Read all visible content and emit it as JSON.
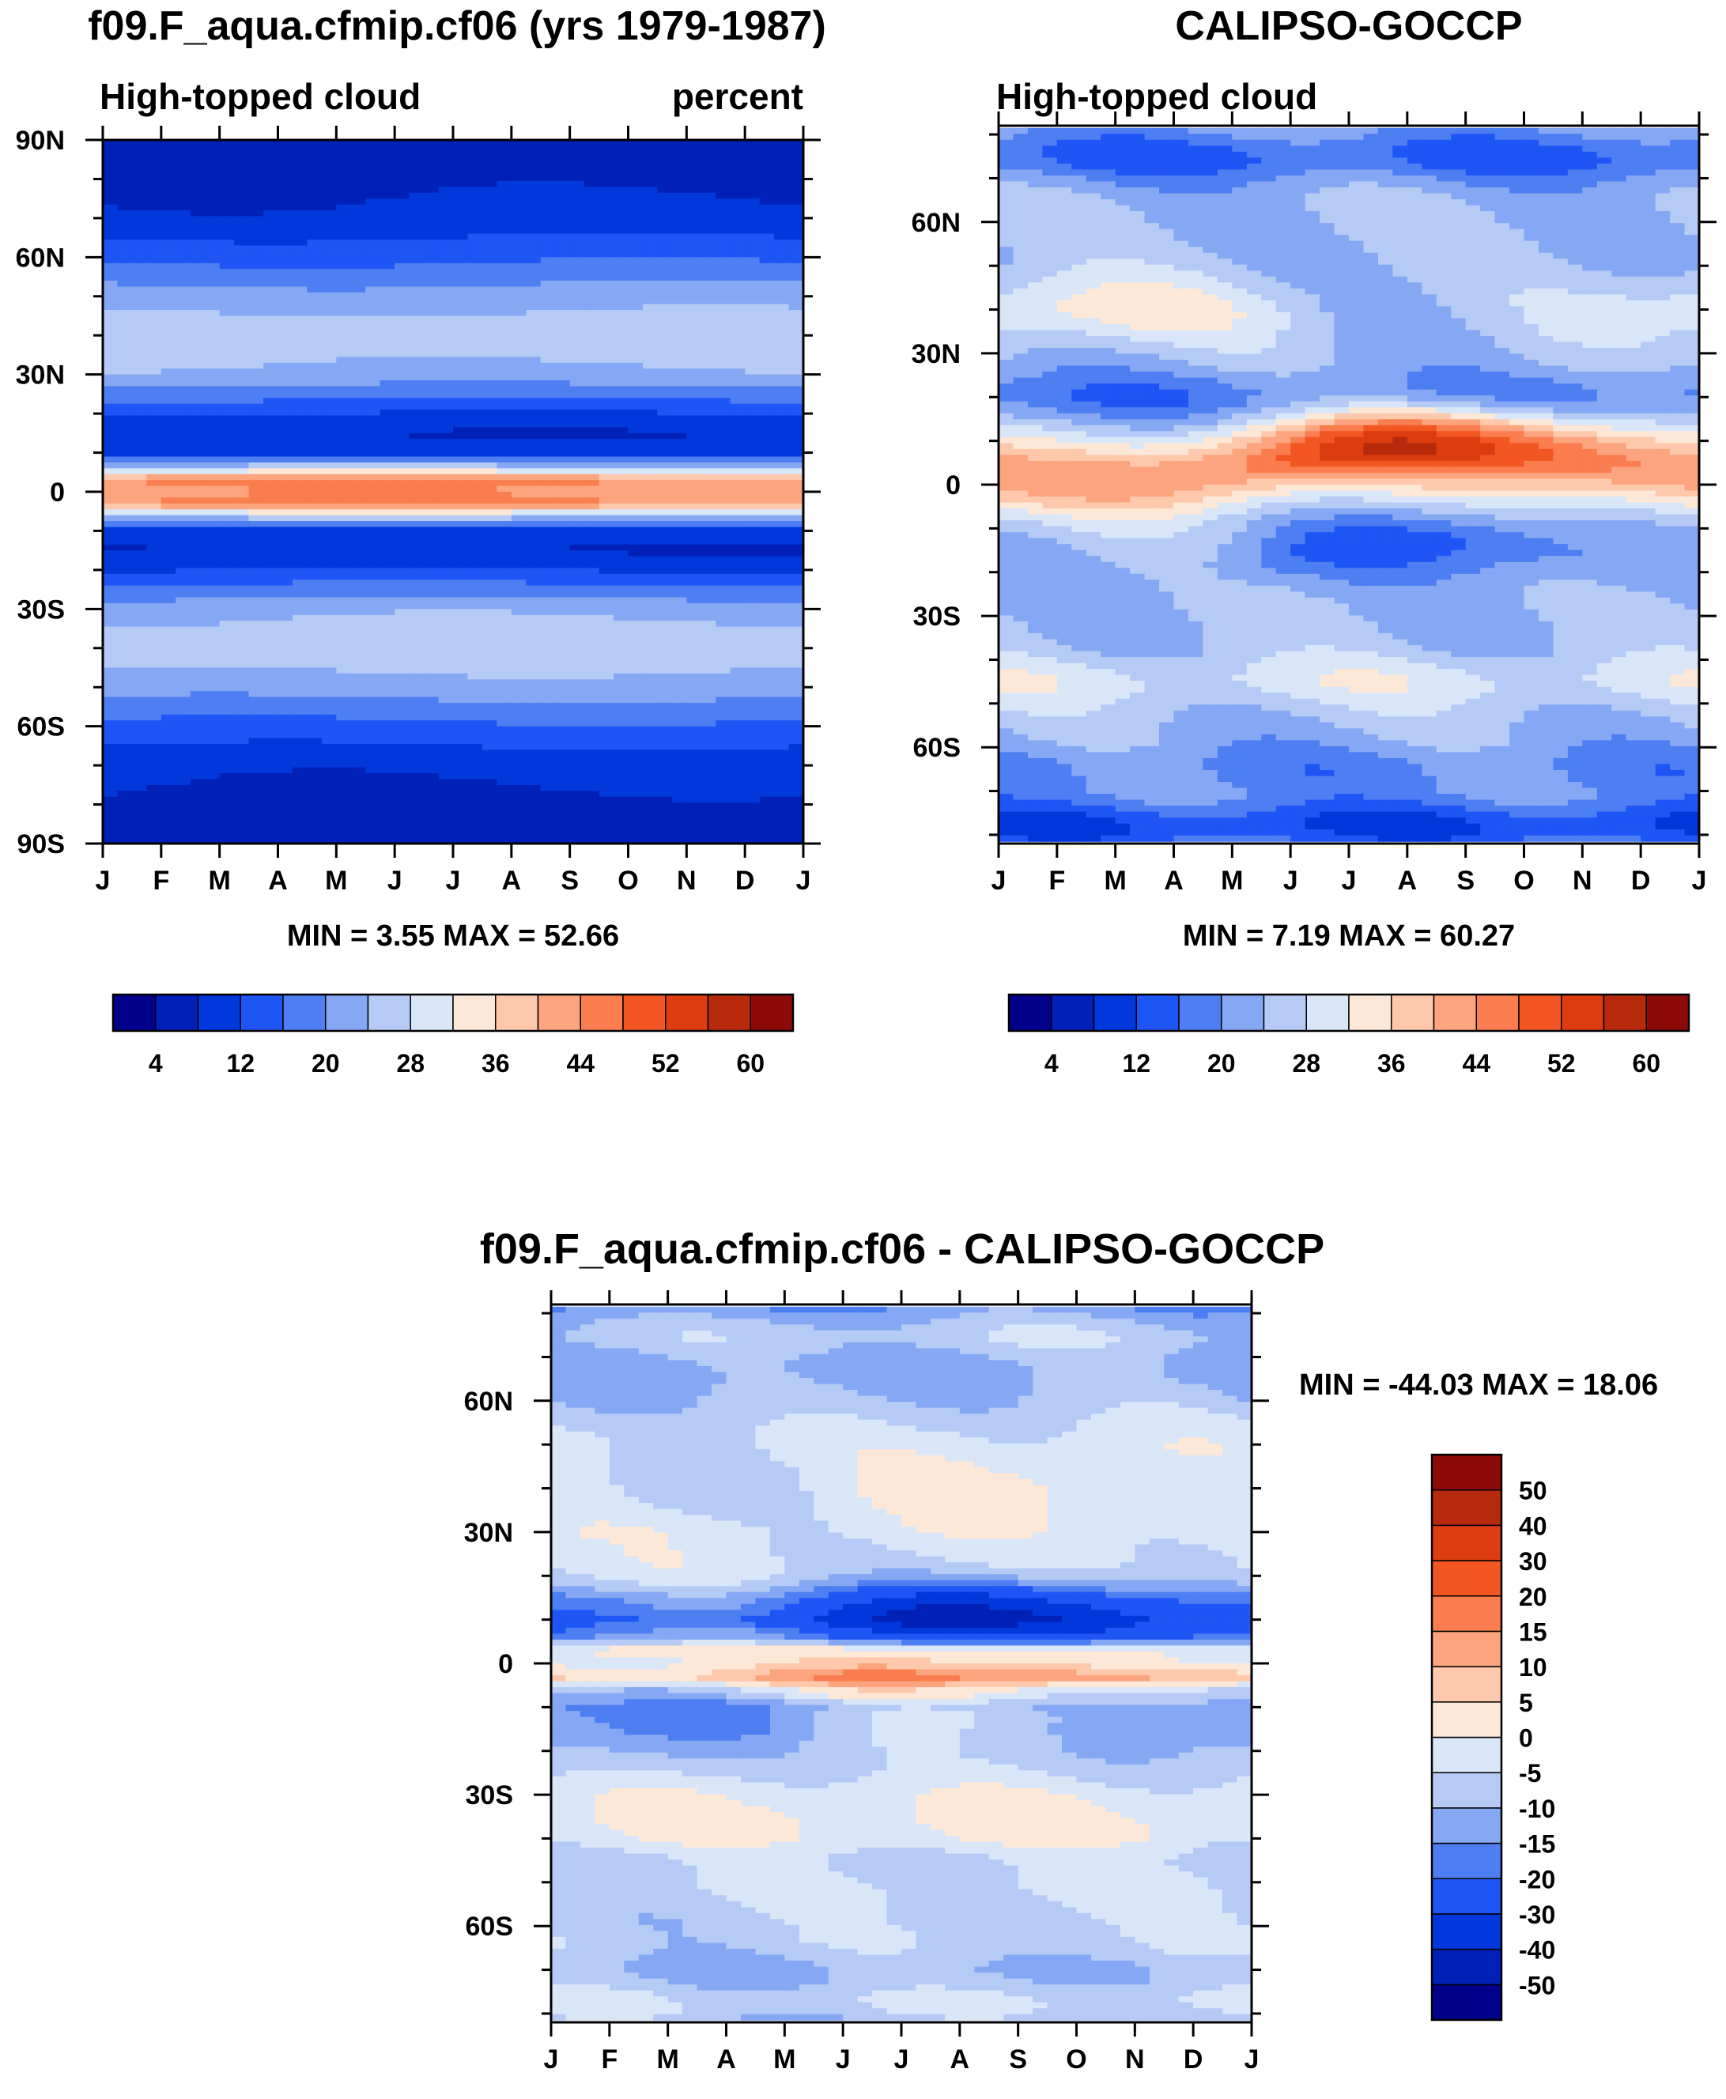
{
  "chart_data": [
    {
      "type": "heatmap",
      "title": "f09.F_aqua.cfmip.cf06 (yrs 1979-1987)",
      "subtitle_left": "High-topped cloud",
      "subtitle_right": "percent",
      "xlabel": "",
      "ylabel": "",
      "x_ticks": [
        "J",
        "F",
        "M",
        "A",
        "M",
        "J",
        "J",
        "A",
        "S",
        "O",
        "N",
        "D",
        "J"
      ],
      "y_ticks": [
        "90N",
        "60N",
        "30N",
        "0",
        "30S",
        "60S",
        "90S"
      ],
      "y_tick_values": [
        90,
        60,
        30,
        0,
        -30,
        -60,
        -90
      ],
      "ylim": [
        -90,
        90
      ],
      "min_max": "MIN =   3.55 MAX =  52.66",
      "colorbar": {
        "levels": [
          0,
          4,
          8,
          12,
          16,
          20,
          24,
          28,
          32,
          36,
          40,
          44,
          48,
          52,
          56,
          60,
          64
        ],
        "labels": [
          "4",
          "12",
          "20",
          "28",
          "36",
          "44",
          "52",
          "60"
        ]
      },
      "lat_profile": {
        "lat": [
          -90,
          -80,
          -70,
          -60,
          -50,
          -40,
          -30,
          -20,
          -15,
          -10,
          -6,
          -3,
          0,
          3,
          6,
          10,
          15,
          20,
          30,
          40,
          50,
          60,
          70,
          80,
          90
        ],
        "value": [
          6,
          7,
          9,
          15,
          22,
          27,
          23,
          12,
          8,
          10,
          26,
          46,
          42,
          46,
          26,
          10,
          8,
          12,
          23,
          27,
          22,
          15,
          9,
          7,
          6
        ]
      }
    },
    {
      "type": "heatmap",
      "title": "CALIPSO-GOCCP",
      "subtitle_left": "High-topped cloud",
      "xlabel": "",
      "ylabel": "",
      "x_ticks": [
        "J",
        "F",
        "M",
        "A",
        "M",
        "J",
        "J",
        "A",
        "S",
        "O",
        "N",
        "D",
        "J"
      ],
      "y_ticks": [
        "60N",
        "30N",
        "0",
        "30S",
        "60S"
      ],
      "y_tick_values": [
        60,
        30,
        0,
        -30,
        -60
      ],
      "ylim": [
        -82,
        82
      ],
      "data_lat_range": [
        -81.5,
        81.5
      ],
      "min_max": "MIN =   7.19 MAX =  60.27",
      "colorbar": {
        "levels": [
          0,
          4,
          8,
          12,
          16,
          20,
          24,
          28,
          32,
          36,
          40,
          44,
          48,
          52,
          56,
          60,
          64
        ],
        "labels": [
          "4",
          "12",
          "20",
          "28",
          "36",
          "44",
          "52",
          "60"
        ]
      }
    },
    {
      "type": "heatmap",
      "title": "f09.F_aqua.cfmip.cf06 - CALIPSO-GOCCP",
      "xlabel": "",
      "ylabel": "",
      "x_ticks": [
        "J",
        "F",
        "M",
        "A",
        "M",
        "J",
        "J",
        "A",
        "S",
        "O",
        "N",
        "D",
        "J"
      ],
      "y_ticks": [
        "60N",
        "30N",
        "0",
        "30S",
        "60S"
      ],
      "y_tick_values": [
        60,
        30,
        0,
        -30,
        -60
      ],
      "ylim": [
        -82,
        82
      ],
      "data_lat_range": [
        -81.5,
        81.5
      ],
      "min_max": "MIN = -44.03 MAX =  18.06",
      "colorbar": {
        "levels": [
          -60,
          -50,
          -40,
          -30,
          -20,
          -15,
          -10,
          -5,
          0,
          5,
          10,
          15,
          20,
          30,
          40,
          50,
          60
        ],
        "labels": [
          "50",
          "40",
          "30",
          "20",
          "15",
          "10",
          "5",
          "0",
          "-5",
          "-10",
          "-15",
          "-20",
          "-30",
          "-40",
          "-50"
        ]
      }
    }
  ],
  "palette": [
    "#00008b",
    "#0020b8",
    "#0038dc",
    "#1e55f5",
    "#4d7ef2",
    "#86a7f3",
    "#b5caf5",
    "#d9e6f8",
    "#fde8d8",
    "#fdc8ac",
    "#fba47e",
    "#f97d4e",
    "#f25723",
    "#dc3c0f",
    "#b82a0c",
    "#8c0a0a"
  ],
  "diff_palette": [
    "#00008b",
    "#0020b8",
    "#0038dc",
    "#1e55f5",
    "#4d7ef2",
    "#86a7f3",
    "#b5caf5",
    "#d9e6f8",
    "#fde8d8",
    "#fdc8ac",
    "#fba47e",
    "#f97d4e",
    "#f25723",
    "#dc3c0f",
    "#b82a0c",
    "#8c0a0a"
  ]
}
